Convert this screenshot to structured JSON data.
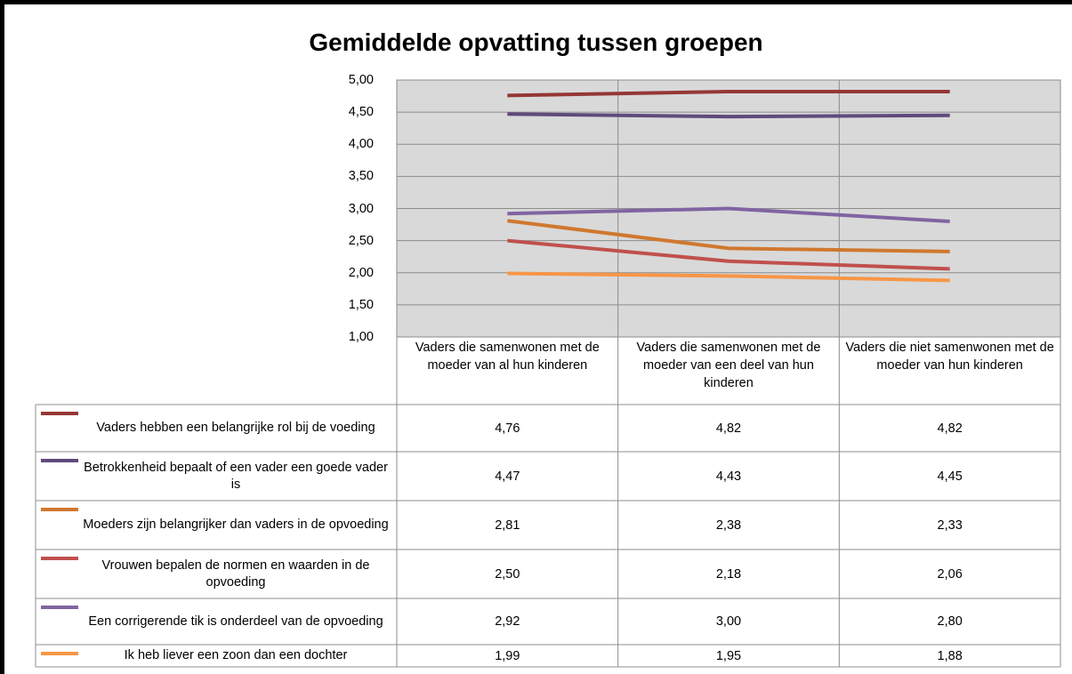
{
  "chart_data": {
    "type": "line",
    "title": "Gemiddelde opvatting tussen groepen",
    "categories": [
      "Vaders die samenwonen met de moeder van al hun kinderen",
      "Vaders die samenwonen met de moeder van een deel van hun kinderen",
      "Vaders die niet samenwonen met de moeder van hun kinderen"
    ],
    "series": [
      {
        "name": "Vaders hebben een belangrijke rol bij de voeding",
        "color": "#953735",
        "values": [
          4.76,
          4.82,
          4.82
        ],
        "value_labels": [
          "4,76",
          "4,82",
          "4,82"
        ]
      },
      {
        "name": "Betrokkenheid bepaalt of een vader een goede vader is",
        "color": "#604a7b",
        "values": [
          4.47,
          4.43,
          4.45
        ],
        "value_labels": [
          "4,47",
          "4,43",
          "4,45"
        ]
      },
      {
        "name": "Moeders zijn belangrijker dan vaders in de opvoeding",
        "color": "#d0782f",
        "values": [
          2.81,
          2.38,
          2.33
        ],
        "value_labels": [
          "2,81",
          "2,38",
          "2,33"
        ]
      },
      {
        "name": "Vrouwen bepalen de normen en waarden in de opvoeding",
        "color": "#c0504d",
        "values": [
          2.5,
          2.18,
          2.06
        ],
        "value_labels": [
          "2,50",
          "2,18",
          "2,06"
        ]
      },
      {
        "name": "Een corrigerende tik is onderdeel van de opvoeding",
        "color": "#8064a2",
        "values": [
          2.92,
          3.0,
          2.8
        ],
        "value_labels": [
          "2,92",
          "3,00",
          "2,80"
        ]
      },
      {
        "name": "Ik heb liever een zoon dan een dochter",
        "color": "#f79646",
        "values": [
          1.99,
          1.95,
          1.88
        ],
        "value_labels": [
          "1,99",
          "1,95",
          "1,88"
        ]
      }
    ],
    "ylim": [
      1,
      5
    ],
    "yticks": [
      {
        "value": 1,
        "label": "1,00"
      },
      {
        "value": 1.5,
        "label": "1,50"
      },
      {
        "value": 2,
        "label": "2,00"
      },
      {
        "value": 2.5,
        "label": "2,50"
      },
      {
        "value": 3,
        "label": "3,00"
      },
      {
        "value": 3.5,
        "label": "3,50"
      },
      {
        "value": 4,
        "label": "4,00"
      },
      {
        "value": 4.5,
        "label": "4,50"
      },
      {
        "value": 5,
        "label": "5,00"
      }
    ],
    "grid": true
  }
}
